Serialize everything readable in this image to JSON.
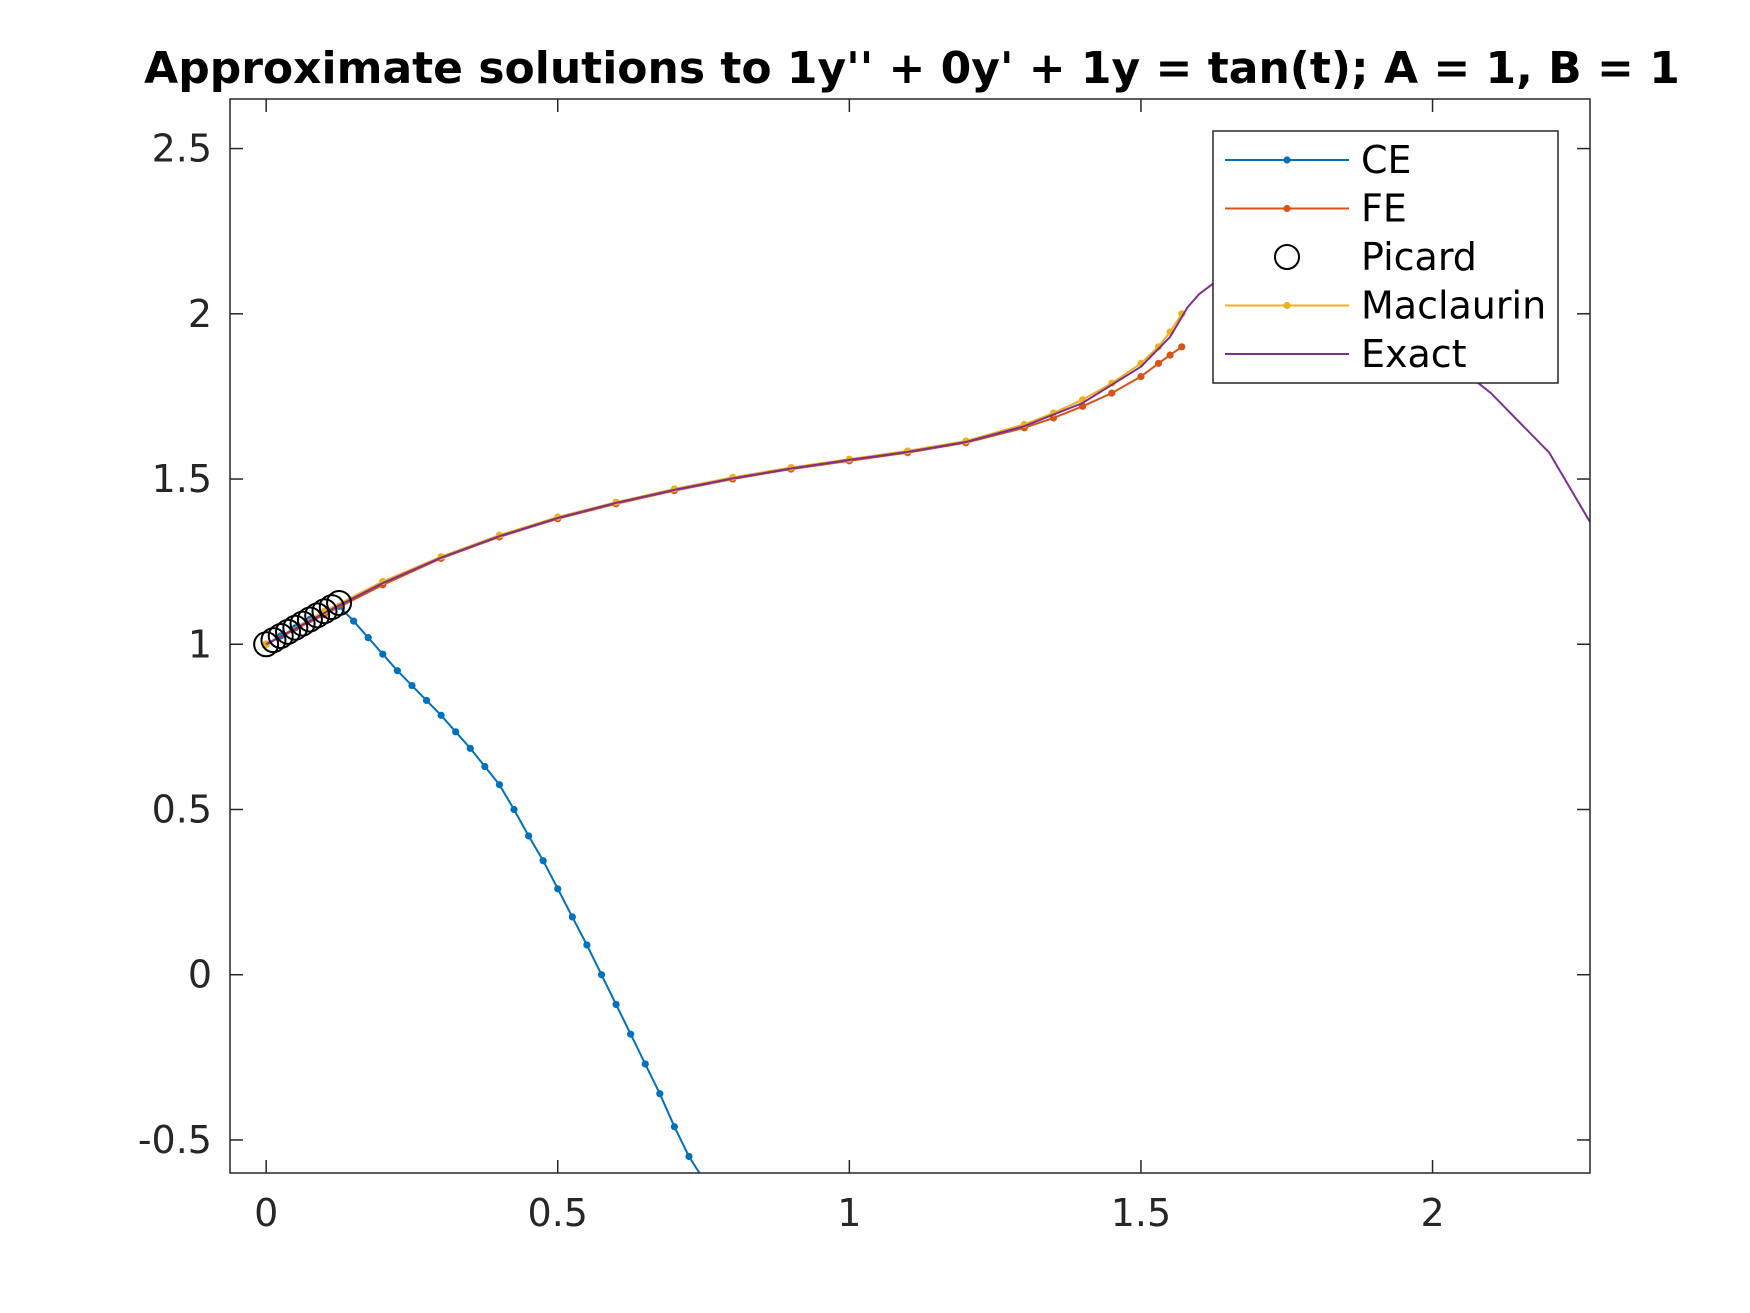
{
  "chart_data": {
    "type": "line",
    "title": "Approximate solutions to 1y'' + 0y' + 1y = tan(t); A = 1, B = 1",
    "xlabel": "",
    "ylabel": "",
    "xlim": [
      -0.062,
      2.27
    ],
    "ylim": [
      -0.6,
      2.65
    ],
    "xticks": [
      0,
      0.5,
      1,
      1.5,
      2
    ],
    "xtick_labels": [
      "0",
      "0.5",
      "1",
      "1.5",
      "2"
    ],
    "yticks": [
      -0.5,
      0,
      0.5,
      1,
      1.5,
      2,
      2.5
    ],
    "ytick_labels": [
      "-0.5",
      "0",
      "0.5",
      "1",
      "1.5",
      "2",
      "2.5"
    ],
    "grid": false,
    "legend_position": "top-right",
    "colors": {
      "CE": "#0072BD",
      "FE": "#D95319",
      "Picard": "#000000",
      "Maclaurin": "#EDB120",
      "Exact": "#7E2F8E"
    },
    "series": [
      {
        "name": "CE",
        "marker": "dot",
        "x": [
          0,
          0.025,
          0.05,
          0.075,
          0.1,
          0.125,
          0.15,
          0.175,
          0.2,
          0.225,
          0.25,
          0.275,
          0.3,
          0.325,
          0.35,
          0.375,
          0.4,
          0.425,
          0.45,
          0.475,
          0.5,
          0.525,
          0.55,
          0.575,
          0.6,
          0.625,
          0.65,
          0.675,
          0.7,
          0.725,
          0.75
        ],
        "y": [
          1.0,
          1.025,
          1.05,
          1.075,
          1.095,
          1.115,
          1.07,
          1.02,
          0.97,
          0.92,
          0.875,
          0.83,
          0.785,
          0.735,
          0.685,
          0.63,
          0.575,
          0.5,
          0.42,
          0.345,
          0.26,
          0.175,
          0.09,
          0.0,
          -0.09,
          -0.18,
          -0.27,
          -0.36,
          -0.46,
          -0.55,
          -0.62
        ]
      },
      {
        "name": "FE",
        "marker": "dot",
        "x": [
          0,
          0.1,
          0.2,
          0.3,
          0.4,
          0.5,
          0.6,
          0.7,
          0.8,
          0.9,
          1.0,
          1.1,
          1.2,
          1.3,
          1.35,
          1.4,
          1.45,
          1.5,
          1.53,
          1.55,
          1.57
        ],
        "y": [
          1.0,
          1.09,
          1.18,
          1.26,
          1.325,
          1.38,
          1.425,
          1.465,
          1.5,
          1.53,
          1.555,
          1.58,
          1.61,
          1.655,
          1.685,
          1.72,
          1.76,
          1.81,
          1.85,
          1.875,
          1.9
        ]
      },
      {
        "name": "Picard",
        "marker": "circle",
        "x": [
          0,
          0.0125,
          0.025,
          0.0375,
          0.05,
          0.0625,
          0.075,
          0.0875,
          0.1,
          0.1125,
          0.125
        ],
        "y": [
          1.0,
          1.0125,
          1.025,
          1.0375,
          1.05,
          1.0625,
          1.075,
          1.0875,
          1.1,
          1.1125,
          1.125
        ]
      },
      {
        "name": "Maclaurin",
        "marker": "dot",
        "x": [
          0,
          0.1,
          0.2,
          0.3,
          0.4,
          0.5,
          0.6,
          0.7,
          0.8,
          0.9,
          1.0,
          1.1,
          1.2,
          1.3,
          1.35,
          1.4,
          1.45,
          1.5,
          1.53,
          1.55,
          1.57
        ],
        "y": [
          1.0,
          1.1,
          1.19,
          1.265,
          1.33,
          1.385,
          1.43,
          1.47,
          1.505,
          1.535,
          1.56,
          1.585,
          1.615,
          1.665,
          1.7,
          1.74,
          1.79,
          1.85,
          1.9,
          1.945,
          2.0
        ]
      },
      {
        "name": "Exact",
        "marker": "none",
        "x": [
          0,
          0.1,
          0.2,
          0.3,
          0.4,
          0.5,
          0.6,
          0.7,
          0.8,
          0.9,
          1.0,
          1.1,
          1.2,
          1.3,
          1.4,
          1.5,
          1.55,
          1.58,
          1.6,
          1.63,
          1.66,
          1.7,
          1.8,
          1.9,
          2.0,
          2.1,
          2.2,
          2.27
        ],
        "y": [
          1.0,
          1.095,
          1.185,
          1.262,
          1.327,
          1.382,
          1.428,
          1.467,
          1.502,
          1.532,
          1.558,
          1.582,
          1.612,
          1.66,
          1.73,
          1.84,
          1.93,
          2.02,
          2.06,
          2.1,
          2.13,
          2.16,
          2.12,
          2.02,
          1.9,
          1.76,
          1.58,
          1.37
        ]
      }
    ]
  }
}
